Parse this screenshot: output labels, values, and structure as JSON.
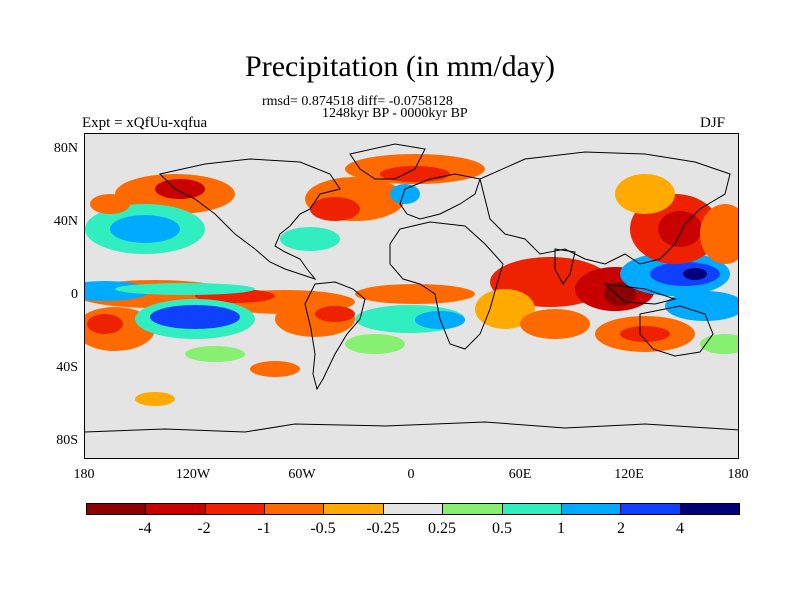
{
  "title": "Precipitation (in mm/day)",
  "stats_line": "rmsd= 0.874518 diff= -0.0758128",
  "period_line": "1248kyr BP - 0000kyr BP",
  "experiment_label": "Expt = xQfUu-xqfua",
  "season": "DJF",
  "y_ticks": [
    "80N",
    "40N",
    "0",
    "40S",
    "80S"
  ],
  "x_ticks": [
    "180",
    "120W",
    "60W",
    "0",
    "60E",
    "120E",
    "180"
  ],
  "legend": {
    "labels": [
      "-4",
      "-2",
      "-1",
      "-0.5",
      "-0.25",
      "0.25",
      "0.5",
      "1",
      "2",
      "4"
    ],
    "colors": [
      "#8b0000",
      "#c80000",
      "#ee2200",
      "#ff6a00",
      "#ffaa00",
      "#e4e4e4",
      "#88f070",
      "#30eec0",
      "#00aaff",
      "#1040ff",
      "#00007a"
    ]
  },
  "colors": {
    "ocean_neutral": "#e4e4e4",
    "coastline": "#000000"
  }
}
